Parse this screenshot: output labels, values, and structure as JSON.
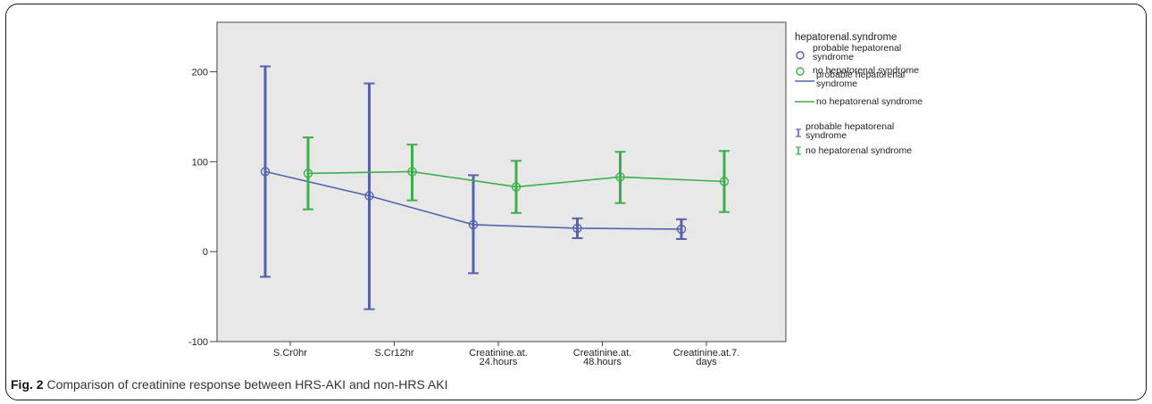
{
  "caption": {
    "label": "Fig. 2",
    "text": "Comparison of creatinine response between HRS-AKI and non-HRS AKI"
  },
  "chart_data": {
    "type": "line",
    "title": "",
    "xlabel": "",
    "ylabel": "",
    "categories": [
      [
        "S.Cr0hr"
      ],
      [
        "S.Cr12hr"
      ],
      [
        "Creatinine.at.",
        "24.hours"
      ],
      [
        "Creatinine.at.",
        "48.hours"
      ],
      [
        "Creatinine.at.7.",
        "days"
      ]
    ],
    "yticks": [
      -100,
      0,
      100,
      200
    ],
    "ylim": [
      -100,
      255
    ],
    "grid": false,
    "background": "#e8e8e8",
    "legend_placement": "right",
    "legend_title": "hepatorenal.syndrome",
    "series": [
      {
        "name": "probable hepatorenal syndrome",
        "color": "#5662ad",
        "marker": "circle",
        "x_index": [
          0,
          1,
          2,
          3,
          4
        ],
        "mean": [
          89,
          62,
          30,
          26,
          25
        ],
        "ci_low": [
          -28,
          -64,
          -24,
          15,
          14
        ],
        "ci_high": [
          206,
          187,
          85,
          37,
          36
        ]
      },
      {
        "name": "no hepatorenal syndrome",
        "color": "#3cb04a",
        "marker": "circle",
        "x_index": [
          0,
          1,
          2,
          3,
          4
        ],
        "mean": [
          87,
          89,
          72,
          83,
          78
        ],
        "ci_low": [
          47,
          57,
          43,
          54,
          44
        ],
        "ci_high": [
          127,
          119,
          101,
          111,
          112
        ]
      }
    ],
    "legend_entries": [
      {
        "kind": "marker",
        "series": 0,
        "lines": [
          "probable hepatorenal",
          "syndrome"
        ]
      },
      {
        "kind": "marker",
        "series": 1,
        "lines": [
          "no hepatorenal syndrome"
        ]
      },
      {
        "kind": "line",
        "series": 0,
        "lines": [
          "probable hepatorenal",
          "syndrome"
        ]
      },
      {
        "kind": "line",
        "series": 1,
        "lines": [
          "no hepatorenal syndrome"
        ]
      },
      {
        "kind": "errorbar",
        "series": 0,
        "lines": [
          "probable hepatorenal",
          "syndrome"
        ]
      },
      {
        "kind": "errorbar",
        "series": 1,
        "lines": [
          "no hepatorenal syndrome"
        ]
      }
    ]
  }
}
